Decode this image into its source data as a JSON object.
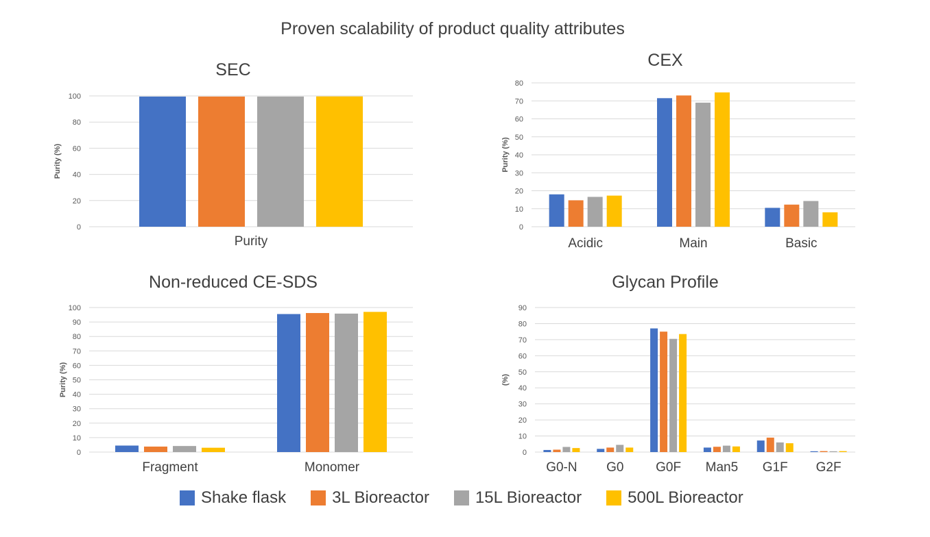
{
  "title": "Proven scalability of product quality attributes",
  "colors": {
    "Shake flask": "#4472C4",
    "3L Bioreactor": "#ED7D31",
    "15L Bioreactor": "#A5A5A5",
    "500L Bioreactor": "#FFC000",
    "grid": "#d9d9d9",
    "text": "#404040",
    "tick": "#595959"
  },
  "legend": [
    "Shake flask",
    "3L Bioreactor",
    "15L Bioreactor",
    "500L Bioreactor"
  ],
  "chart_data": [
    {
      "type": "bar",
      "title": "SEC",
      "ylabel": "Purity (%)",
      "ylim": [
        0,
        100
      ],
      "yticks": [
        0,
        20,
        40,
        60,
        80,
        100
      ],
      "grid": true,
      "categories": [
        "Purity"
      ],
      "series": [
        {
          "name": "Shake flask",
          "values": [
            99.5
          ]
        },
        {
          "name": "3L Bioreactor",
          "values": [
            99.5
          ]
        },
        {
          "name": "15L Bioreactor",
          "values": [
            99.5
          ]
        },
        {
          "name": "500L Bioreactor",
          "values": [
            99.6
          ]
        }
      ]
    },
    {
      "type": "bar",
      "title": "CEX",
      "ylabel": "Purity (%)",
      "ylim": [
        0,
        80
      ],
      "yticks": [
        0,
        10,
        20,
        30,
        40,
        50,
        60,
        70,
        80
      ],
      "grid": true,
      "categories": [
        "Acidic",
        "Main",
        "Basic"
      ],
      "series": [
        {
          "name": "Shake flask",
          "values": [
            18,
            71.5,
            10.5
          ]
        },
        {
          "name": "3L Bioreactor",
          "values": [
            14.7,
            73,
            12.3
          ]
        },
        {
          "name": "15L Bioreactor",
          "values": [
            16.6,
            69,
            14.3
          ]
        },
        {
          "name": "500L Bioreactor",
          "values": [
            17.3,
            74.7,
            8
          ]
        }
      ]
    },
    {
      "type": "bar",
      "title": "Non-reduced CE-SDS",
      "ylabel": "Purity (%)",
      "ylim": [
        0,
        100
      ],
      "yticks": [
        0,
        10,
        20,
        30,
        40,
        50,
        60,
        70,
        80,
        90,
        100
      ],
      "grid": true,
      "categories": [
        "Fragment",
        "Monomer"
      ],
      "series": [
        {
          "name": "Shake flask",
          "values": [
            4.5,
            95.5
          ]
        },
        {
          "name": "3L Bioreactor",
          "values": [
            3.8,
            96.2
          ]
        },
        {
          "name": "15L Bioreactor",
          "values": [
            4.2,
            95.8
          ]
        },
        {
          "name": "500L Bioreactor",
          "values": [
            3,
            97
          ]
        }
      ]
    },
    {
      "type": "bar",
      "title": "Glycan Profile",
      "ylabel": "(%)",
      "ylim": [
        0,
        90
      ],
      "yticks": [
        0,
        10,
        20,
        30,
        40,
        50,
        60,
        70,
        80,
        90
      ],
      "grid": true,
      "categories": [
        "G0-N",
        "G0",
        "G0F",
        "Man5",
        "G1F",
        "G2F"
      ],
      "series": [
        {
          "name": "Shake flask",
          "values": [
            1.3,
            2,
            77,
            2.8,
            7.2,
            0.5
          ]
        },
        {
          "name": "3L Bioreactor",
          "values": [
            1.5,
            2.8,
            75,
            3.3,
            9,
            0.6
          ]
        },
        {
          "name": "15L Bioreactor",
          "values": [
            3.2,
            4.5,
            70.5,
            4,
            6,
            0.5
          ]
        },
        {
          "name": "500L Bioreactor",
          "values": [
            2.5,
            2.8,
            73.5,
            3.5,
            5.5,
            0.6
          ]
        }
      ]
    }
  ]
}
